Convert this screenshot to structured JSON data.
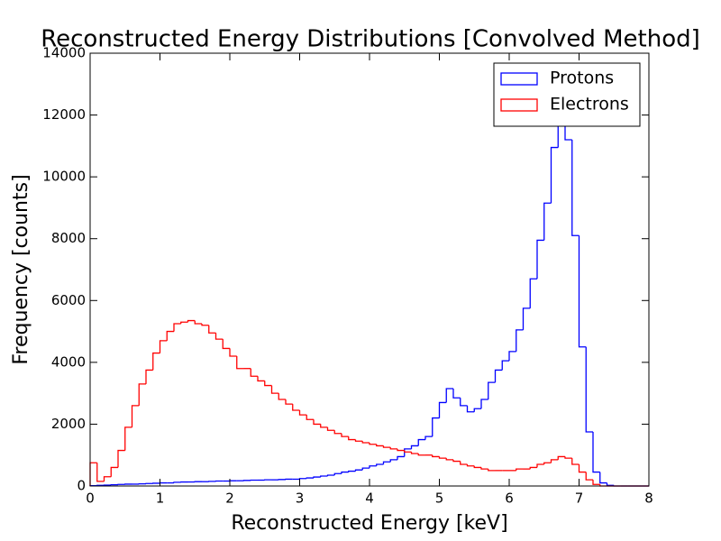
{
  "chart_data": {
    "type": "histogram",
    "title": "Reconstructed Energy Distributions [Convolved Method]",
    "x_label": "Reconstructed Energy [keV]",
    "y_label": "Frequency [counts]",
    "bins": [
      0,
      0.1,
      0.2,
      0.3,
      0.4,
      0.5,
      0.6,
      0.7,
      0.8,
      0.9,
      1,
      1.1,
      1.2,
      1.3,
      1.4,
      1.5,
      1.6,
      1.7,
      1.8,
      1.9,
      2,
      2.1,
      2.2,
      2.3,
      2.4,
      2.5,
      2.6,
      2.7,
      2.8,
      2.9,
      3,
      3.1,
      3.2,
      3.3,
      3.4,
      3.5,
      3.6,
      3.7,
      3.8,
      3.9,
      4,
      4.1,
      4.2,
      4.3,
      4.4,
      4.5,
      4.6,
      4.7,
      4.8,
      4.9,
      5,
      5.1,
      5.2,
      5.3,
      5.4,
      5.5,
      5.6,
      5.7,
      5.8,
      5.9,
      6,
      6.1,
      6.2,
      6.3,
      6.4,
      6.5,
      6.6,
      6.7,
      6.8,
      6.9,
      7,
      7.1,
      7.2,
      7.3,
      7.4,
      7.5,
      7.6,
      7.7,
      7.8,
      7.9,
      8
    ],
    "series": [
      {
        "name": "Protons",
        "color": "#0000ff",
        "values": [
          10,
          20,
          30,
          40,
          50,
          60,
          60,
          70,
          80,
          90,
          100,
          100,
          120,
          130,
          130,
          140,
          140,
          150,
          160,
          160,
          170,
          170,
          180,
          190,
          190,
          200,
          200,
          210,
          220,
          220,
          240,
          260,
          290,
          320,
          350,
          400,
          450,
          480,
          520,
          580,
          650,
          700,
          780,
          850,
          950,
          1200,
          1300,
          1500,
          1600,
          2200,
          2700,
          3150,
          2850,
          2600,
          2400,
          2500,
          2800,
          3350,
          3750,
          4050,
          4350,
          5050,
          5750,
          6700,
          7950,
          9150,
          10950,
          12500,
          11200,
          8100,
          4500,
          1750,
          450,
          100,
          20,
          0,
          0,
          0,
          0,
          0
        ]
      },
      {
        "name": "Electrons",
        "color": "#ff0000",
        "values": [
          750,
          150,
          300,
          600,
          1150,
          1900,
          2600,
          3300,
          3750,
          4300,
          4700,
          5000,
          5250,
          5300,
          5350,
          5250,
          5200,
          4950,
          4750,
          4450,
          4200,
          3800,
          3800,
          3550,
          3400,
          3250,
          3000,
          2800,
          2650,
          2450,
          2300,
          2150,
          2000,
          1900,
          1800,
          1700,
          1600,
          1500,
          1450,
          1400,
          1350,
          1300,
          1250,
          1200,
          1150,
          1100,
          1050,
          1000,
          1000,
          950,
          900,
          850,
          800,
          700,
          650,
          600,
          550,
          500,
          500,
          500,
          500,
          550,
          550,
          600,
          700,
          750,
          850,
          950,
          900,
          700,
          450,
          200,
          50,
          0,
          0,
          0,
          0,
          0,
          0,
          0
        ]
      }
    ],
    "xlim": [
      0,
      8
    ],
    "xticks": [
      0,
      1,
      2,
      3,
      4,
      5,
      6,
      7,
      8
    ],
    "ylim": [
      0,
      14000
    ],
    "yticks": [
      0,
      2000,
      4000,
      6000,
      8000,
      10000,
      12000,
      14000
    ],
    "legend": "upper right"
  }
}
